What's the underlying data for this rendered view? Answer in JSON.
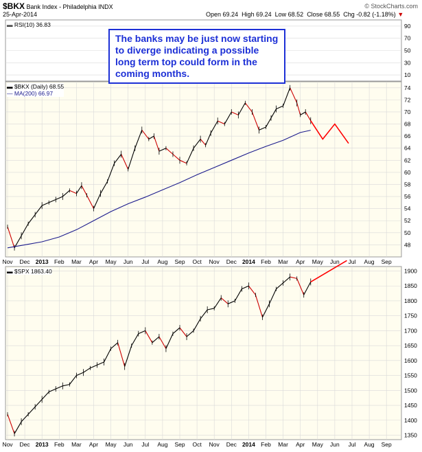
{
  "header": {
    "symbol": "$BKX",
    "name": "Bank Index - Philadelphia",
    "exchange": "INDX",
    "date": "25-Apr-2014",
    "open": "Open 69.24",
    "high": "High 69.24",
    "low": "Low 68.52",
    "close": "Close 68.55",
    "chg": "Chg -0.82 (-1.18%)",
    "copyright": "© StockCharts.com"
  },
  "annotation": "The banks may be just now starting to diverge indicating a possible long term top could form in the coming months.",
  "colors": {
    "price_line": "#000000",
    "down_segment": "#cc0000",
    "ma_line": "#1a1a8c",
    "projection": "#ff0000",
    "annotation": "#1c2fd6",
    "panel_bg": "#fffdef",
    "rsi_bg": "#ffffff",
    "grid": "#d9d9d9"
  },
  "chart_data": [
    {
      "type": "line",
      "panel": "rsi",
      "label": "RSI(10) 36.83",
      "ylim": [
        0,
        100
      ],
      "yticks": [
        10,
        30,
        50,
        70,
        90
      ],
      "series": [],
      "grid": true
    },
    {
      "type": "line",
      "panel": "bkx",
      "label_price": "$BKX (Daily) 68.55",
      "label_ma": "MA(200) 66.97",
      "ylim": [
        46,
        75
      ],
      "yticks": [
        48,
        50,
        52,
        54,
        56,
        58,
        60,
        62,
        64,
        66,
        68,
        70,
        72,
        74
      ],
      "x_axis_labels": [
        "Nov",
        "Dec",
        "2013",
        "Feb",
        "Mar",
        "Apr",
        "May",
        "Jun",
        "Jul",
        "Aug",
        "Sep",
        "Oct",
        "Nov",
        "Dec",
        "2014",
        "Feb",
        "Mar",
        "Apr",
        "May",
        "Jun",
        "Jul",
        "Aug",
        "Sep"
      ],
      "x_month_index": [
        0,
        1,
        2,
        3,
        4,
        5,
        6,
        7,
        8,
        9,
        10,
        11,
        12,
        13,
        14,
        15,
        16,
        17,
        18,
        19,
        20,
        21,
        22
      ],
      "series": [
        {
          "name": "$BKX (Daily)",
          "x": [
            0,
            0.4,
            0.8,
            1.2,
            1.6,
            2.0,
            2.4,
            2.8,
            3.2,
            3.6,
            4.0,
            4.3,
            4.6,
            5.0,
            5.4,
            5.8,
            6.2,
            6.6,
            7.0,
            7.4,
            7.8,
            8.2,
            8.5,
            8.8,
            9.2,
            9.6,
            10.0,
            10.4,
            10.8,
            11.2,
            11.5,
            11.8,
            12.2,
            12.6,
            13.0,
            13.4,
            13.8,
            14.2,
            14.6,
            15.0,
            15.3,
            15.6,
            16.0,
            16.4,
            16.8,
            17.0,
            17.3,
            17.6
          ],
          "values": [
            51,
            47.5,
            49.5,
            51.5,
            53,
            54.5,
            55,
            55.5,
            56,
            57,
            56.5,
            57.8,
            56.2,
            54,
            56.5,
            58.5,
            61.5,
            63,
            60.5,
            64,
            67,
            65.5,
            66,
            63.5,
            64,
            63,
            62,
            61.5,
            64,
            65.5,
            64.5,
            66.5,
            68.5,
            68,
            70,
            69.5,
            71.5,
            70,
            67,
            67.5,
            69,
            70.5,
            71,
            74,
            71.5,
            69.5,
            70,
            68.55
          ]
        },
        {
          "name": "MA(200)",
          "x": [
            0,
            1,
            2,
            3,
            4,
            5,
            6,
            7,
            8,
            9,
            10,
            11,
            12,
            13,
            14,
            15,
            16,
            17,
            17.6
          ],
          "values": [
            47.5,
            48,
            48.5,
            49.3,
            50.5,
            52,
            53.5,
            54.8,
            55.9,
            57.1,
            58.3,
            59.6,
            60.8,
            62,
            63.2,
            64.3,
            65.3,
            66.6,
            66.97
          ]
        },
        {
          "name": "projection",
          "x": [
            17.6,
            18.3,
            19.0,
            19.8
          ],
          "values": [
            68.55,
            65.5,
            68,
            64.8
          ]
        }
      ]
    },
    {
      "type": "line",
      "panel": "spx",
      "label_price": "$SPX 1863.40",
      "ylim": [
        1335,
        1915
      ],
      "yticks": [
        1350,
        1400,
        1450,
        1500,
        1550,
        1600,
        1650,
        1700,
        1750,
        1800,
        1850,
        1900
      ],
      "x_axis_labels": [
        "Nov",
        "Dec",
        "2013",
        "Feb",
        "Mar",
        "Apr",
        "May",
        "Jun",
        "Jul",
        "Aug",
        "Sep",
        "Oct",
        "Nov",
        "Dec",
        "2014",
        "Feb",
        "Mar",
        "Apr",
        "May",
        "Jun",
        "Jul",
        "Aug",
        "Sep"
      ],
      "x_month_index": [
        0,
        1,
        2,
        3,
        4,
        5,
        6,
        7,
        8,
        9,
        10,
        11,
        12,
        13,
        14,
        15,
        16,
        17,
        18,
        19,
        20,
        21,
        22
      ],
      "series": [
        {
          "name": "$SPX",
          "x": [
            0,
            0.4,
            0.8,
            1.2,
            1.6,
            2.0,
            2.4,
            2.8,
            3.2,
            3.6,
            4.0,
            4.4,
            4.8,
            5.2,
            5.6,
            6.0,
            6.4,
            6.8,
            7.2,
            7.6,
            8.0,
            8.4,
            8.8,
            9.2,
            9.6,
            10.0,
            10.4,
            10.8,
            11.2,
            11.6,
            12.0,
            12.4,
            12.8,
            13.2,
            13.6,
            14.0,
            14.4,
            14.8,
            15.2,
            15.6,
            16.0,
            16.4,
            16.8,
            17.2,
            17.6
          ],
          "values": [
            1420,
            1355,
            1395,
            1420,
            1445,
            1470,
            1495,
            1505,
            1515,
            1520,
            1550,
            1560,
            1575,
            1585,
            1595,
            1640,
            1660,
            1580,
            1650,
            1690,
            1700,
            1660,
            1680,
            1640,
            1690,
            1710,
            1680,
            1700,
            1740,
            1770,
            1775,
            1810,
            1790,
            1800,
            1840,
            1850,
            1820,
            1745,
            1790,
            1840,
            1860,
            1880,
            1875,
            1820,
            1863.4
          ]
        },
        {
          "name": "projection",
          "x": [
            17.6,
            19.7
          ],
          "values": [
            1863.4,
            1935
          ]
        }
      ]
    }
  ]
}
